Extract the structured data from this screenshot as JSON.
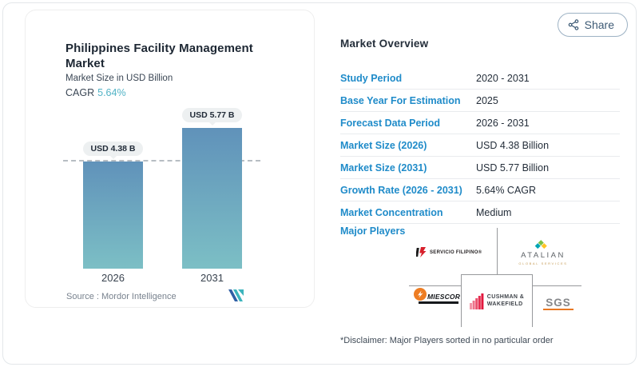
{
  "share": {
    "label": "Share",
    "icon": "share-nodes-icon"
  },
  "chart_card": {
    "title": "Philippines Facility Management Market",
    "subtitle": "Market Size in USD Billion",
    "cagr_label": "CAGR",
    "cagr_value": "5.64%",
    "source": "Source :  Mordor Intelligence",
    "logo": "mordor-intelligence-logo"
  },
  "chart_data": {
    "type": "bar",
    "title": "Philippines Facility Management Market",
    "ylabel": "Market Size in USD Billion",
    "xlabel": "",
    "categories": [
      "2026",
      "2031"
    ],
    "values": [
      4.38,
      5.77
    ],
    "bar_labels": [
      "USD 4.38 B",
      "USD 5.77 B"
    ],
    "unit": "USD Billion",
    "ylim": [
      0,
      6.3
    ],
    "reference_line_value": 4.38,
    "grid": false,
    "legend": false
  },
  "overview": {
    "title": "Market Overview",
    "rows": [
      {
        "label": "Study Period",
        "value": "2020 - 2031"
      },
      {
        "label": "Base Year For Estimation",
        "value": "2025"
      },
      {
        "label": "Forecast Data Period",
        "value": "2026 - 2031"
      },
      {
        "label": "Market Size (2026)",
        "value": "USD 4.38 Billion"
      },
      {
        "label": "Market Size (2031)",
        "value": "USD 5.77 Billion"
      },
      {
        "label": "Growth Rate (2026 - 2031)",
        "value": "5.64% CAGR"
      },
      {
        "label": "Market Concentration",
        "value": "Medium"
      }
    ],
    "major_players_label": "Major Players",
    "players": [
      {
        "name": "Servicio Filipino",
        "logo_text": "SERVICIO FILIPINO®"
      },
      {
        "name": "Atalian Global Services",
        "logo_line1": "ATALIAN",
        "logo_line2": "GLOBAL SERVICES"
      },
      {
        "name": "Miescor",
        "logo_text": "MIESCOR"
      },
      {
        "name": "Cushman & Wakefield",
        "logo_line1": "CUSHMAN &",
        "logo_line2": "WAKEFIELD"
      },
      {
        "name": "SGS",
        "logo_text": "SGS"
      }
    ],
    "disclaimer": "*Disclaimer: Major Players sorted in no particular order"
  },
  "colors": {
    "accent_blue": "#1f8bc9",
    "teal": "#52b3c6",
    "bar_top": "#6092ba",
    "bar_bottom": "#7cbfc5",
    "badge_bg": "#edf0f1",
    "cushman_red": "#e2173d",
    "sgs_orange": "#e87722",
    "miescor_orange": "#ee7d23",
    "servicio_red": "#d71f2b"
  }
}
